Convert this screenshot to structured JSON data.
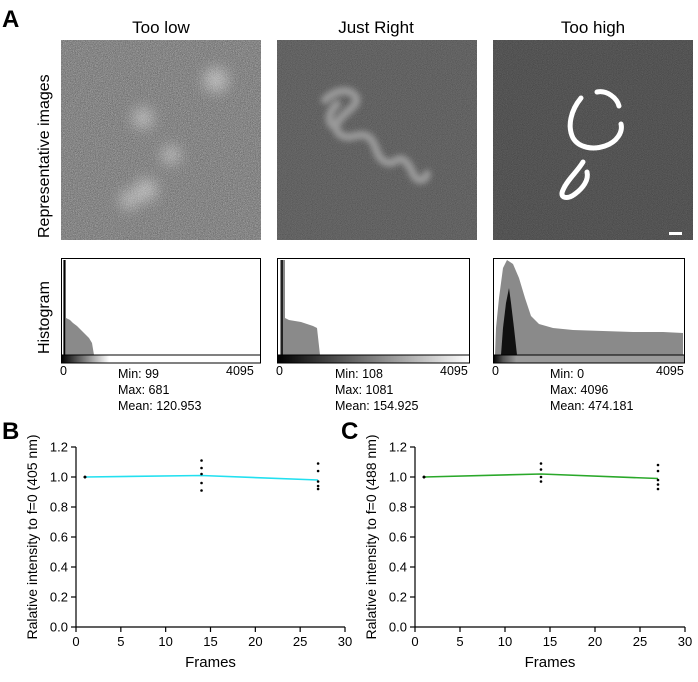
{
  "panels": {
    "a": "A",
    "b": "B",
    "c": "C"
  },
  "panel_a": {
    "row_labels": {
      "images": "Representative images",
      "histogram": "Histogram"
    },
    "columns": [
      {
        "title": "Too low",
        "hist_min_tick": "0",
        "hist_max_tick": "4095",
        "stats": {
          "min": "Min: 99",
          "max": "Max: 681",
          "mean": "Mean: 120.953"
        }
      },
      {
        "title": "Just Right",
        "hist_min_tick": "0",
        "hist_max_tick": "4095",
        "stats": {
          "min": "Min: 108",
          "max": "Max: 1081",
          "mean": "Mean: 154.925"
        }
      },
      {
        "title": "Too high",
        "hist_min_tick": "0",
        "hist_max_tick": "4095",
        "stats": {
          "min": "Min: 0",
          "max": "Max: 4096",
          "mean": "Mean: 474.181"
        }
      }
    ]
  },
  "chart_data": [
    {
      "panel": "B",
      "type": "line",
      "xlabel": "Frames",
      "ylabel": "Ralative intensity to f=0 (405 nm)",
      "xlim": [
        0,
        30
      ],
      "ylim": [
        0,
        1.2
      ],
      "xticks": [
        "0",
        "5",
        "10",
        "15",
        "20",
        "25",
        "30"
      ],
      "yticks": [
        "0.0",
        "0.2",
        "0.4",
        "0.6",
        "0.8",
        "1.0",
        "1.2"
      ],
      "color": "#22e0f0",
      "series": [
        {
          "x": [
            1,
            14,
            27
          ],
          "y": [
            1.0,
            1.01,
            0.98
          ]
        }
      ],
      "points": [
        {
          "x": 1,
          "y": [
            1.0,
            1.0,
            1.0,
            1.0,
            1.0
          ]
        },
        {
          "x": 14,
          "y": [
            1.11,
            1.06,
            1.02,
            0.96,
            0.91
          ]
        },
        {
          "x": 27,
          "y": [
            1.09,
            1.04,
            0.97,
            0.94,
            0.92
          ]
        }
      ]
    },
    {
      "panel": "C",
      "type": "line",
      "xlabel": "Frames",
      "ylabel": "Ralative intensity to f=0 (488 nm)",
      "xlim": [
        0,
        30
      ],
      "ylim": [
        0,
        1.2
      ],
      "xticks": [
        "0",
        "5",
        "10",
        "15",
        "20",
        "25",
        "30"
      ],
      "yticks": [
        "0.0",
        "0.2",
        "0.4",
        "0.6",
        "0.8",
        "1.0",
        "1.2"
      ],
      "color": "#2aa82a",
      "series": [
        {
          "x": [
            1,
            14,
            27
          ],
          "y": [
            1.0,
            1.02,
            0.99
          ]
        }
      ],
      "points": [
        {
          "x": 1,
          "y": [
            1.0,
            1.0,
            1.0,
            1.0,
            1.0
          ]
        },
        {
          "x": 14,
          "y": [
            1.09,
            1.05,
            1.0,
            0.97
          ]
        },
        {
          "x": 27,
          "y": [
            1.08,
            1.04,
            0.98,
            0.95,
            0.92
          ]
        }
      ]
    }
  ]
}
